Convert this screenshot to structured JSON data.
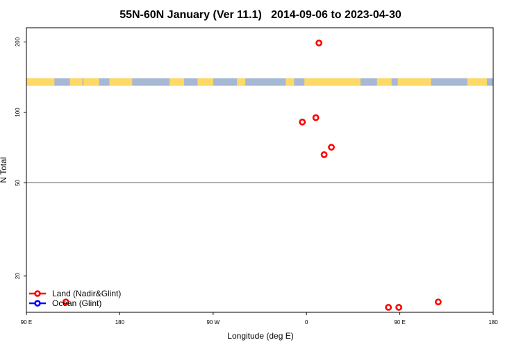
{
  "chart_data": {
    "type": "scatter",
    "title": "55N-60N January (Ver 11.1)   2014-09-06 to 2023-04-30",
    "xlabel": "Longitude (deg E)",
    "ylabel": "N Total",
    "y_scale": "log",
    "grid": false,
    "legend_position": "bottom-left",
    "x_ticks": [
      {
        "lon": -90,
        "label": "90 E"
      },
      {
        "lon": 0,
        "label": "180"
      },
      {
        "lon": 90,
        "label": "90 W"
      },
      {
        "lon": 180,
        "label": "0"
      },
      {
        "lon": 270,
        "label": "90 E"
      },
      {
        "lon": 360,
        "label": "180"
      }
    ],
    "xlim": [
      -90,
      360
    ],
    "y_ticks": [
      {
        "value": 20,
        "label": "20"
      },
      {
        "value": 50,
        "label": "50"
      },
      {
        "value": 100,
        "label": "100"
      },
      {
        "value": 200,
        "label": "200"
      }
    ],
    "ylim": [
      14.0,
      230
    ],
    "reference_line": 50,
    "map_strip": {
      "y_top": 140,
      "y_bottom": 130,
      "land_color": "#FFD966",
      "ocean_color": "#A6B8D4"
    },
    "series": [
      {
        "name": "Land (Nadir&Glint)",
        "color": "#ff0000",
        "points": [
          {
            "lon": -52,
            "y": 15.5
          },
          {
            "lon": 176,
            "y": 91
          },
          {
            "lon": 189,
            "y": 95
          },
          {
            "lon": 192,
            "y": 198
          },
          {
            "lon": 197,
            "y": 66
          },
          {
            "lon": 204,
            "y": 71
          },
          {
            "lon": 259,
            "y": 14.7
          },
          {
            "lon": 269,
            "y": 14.7
          },
          {
            "lon": 307,
            "y": 15.5
          }
        ]
      },
      {
        "name": "Ocean (Glint)",
        "color": "#0000ff",
        "points": []
      }
    ]
  }
}
